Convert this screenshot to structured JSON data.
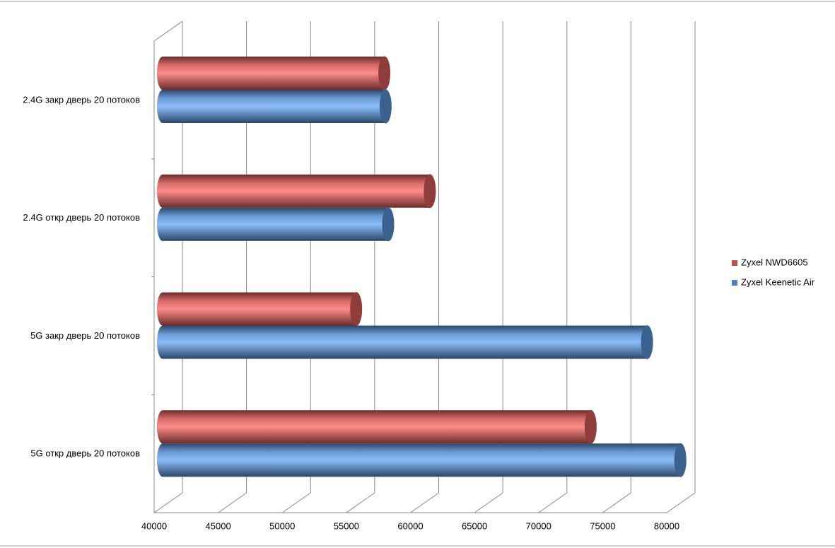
{
  "chart_data": {
    "type": "bar3d_horizontal",
    "categories": [
      "2.4G закр дверь 20 потоков",
      "2.4G откр  дверь 20 потоков",
      "5G закр дверь 20 потоков",
      "5G откр дверь 20 потоков"
    ],
    "series": [
      {
        "name": "Zyxel NWD6605",
        "color": "#c0504d",
        "values": [
          57300,
          60850,
          55100,
          73400
        ]
      },
      {
        "name": "Zyxel Keenetic Air",
        "color": "#4f81bd",
        "values": [
          57400,
          57600,
          77800,
          80400
        ]
      }
    ],
    "xlim": [
      40000,
      80000
    ],
    "xticks": [
      40000,
      45000,
      50000,
      55000,
      60000,
      65000,
      70000,
      75000,
      80000
    ],
    "grid": true
  }
}
